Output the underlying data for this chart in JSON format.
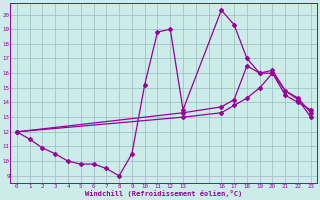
{
  "bg_color": "#ccecea",
  "line_color": "#990099",
  "grid_color": "#99bbbb",
  "xlabel": "Windchill (Refroidissement éolien,°C)",
  "x_labels": [
    "0",
    "1",
    "2",
    "3",
    "4",
    "5",
    "6",
    "7",
    "8",
    "9",
    "10",
    "11",
    "12",
    "13",
    "",
    "",
    "16",
    "17",
    "18",
    "19",
    "20",
    "21",
    "22",
    "23"
  ],
  "x_positions": [
    0,
    1,
    2,
    3,
    4,
    5,
    6,
    7,
    8,
    9,
    10,
    11,
    12,
    13,
    14,
    15,
    16,
    17,
    18,
    19,
    20,
    21,
    22,
    23
  ],
  "yticks": [
    9,
    10,
    11,
    12,
    13,
    14,
    15,
    16,
    17,
    18,
    19,
    20
  ],
  "ylim": [
    8.5,
    20.8
  ],
  "xlim": [
    -0.5,
    23.5
  ],
  "line1_x": [
    0,
    1,
    2,
    3,
    4,
    5,
    6,
    7,
    8,
    9,
    10,
    11,
    12,
    13,
    16,
    17,
    18,
    19,
    20,
    21,
    22,
    23
  ],
  "line1_xi": [
    0,
    1,
    2,
    3,
    4,
    5,
    6,
    7,
    8,
    9,
    10,
    11,
    12,
    13,
    16,
    17,
    18,
    19,
    20,
    21,
    22,
    23
  ],
  "line1_y": [
    12.0,
    11.5,
    10.9,
    10.5,
    10.0,
    9.8,
    9.8,
    9.5,
    9.0,
    10.5,
    15.2,
    18.8,
    19.0,
    13.5,
    20.3,
    19.3,
    17.0,
    16.0,
    16.0,
    14.8,
    14.2,
    13.0
  ],
  "line2_x": [
    0,
    13,
    16,
    17,
    18,
    19,
    20,
    21,
    22,
    23
  ],
  "line2_y": [
    12.0,
    13.3,
    13.7,
    14.2,
    16.5,
    16.0,
    16.2,
    14.8,
    14.3,
    13.3
  ],
  "line3_x": [
    0,
    13,
    16,
    17,
    18,
    19,
    20,
    21,
    22,
    23
  ],
  "line3_y": [
    12.0,
    13.0,
    13.3,
    13.8,
    14.3,
    15.0,
    16.0,
    14.5,
    14.0,
    13.5
  ]
}
